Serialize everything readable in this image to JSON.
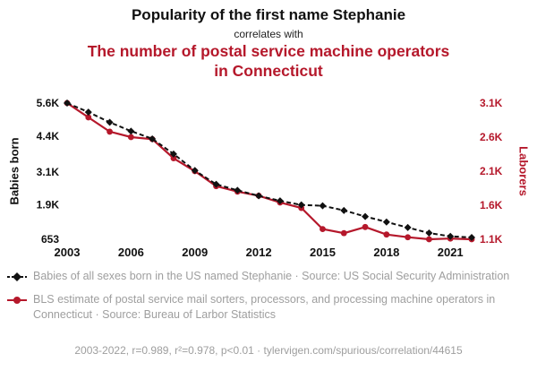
{
  "header": {
    "title": "Popularity of the first name Stephanie",
    "subtitle": "correlates with",
    "title2": "The number of postal service machine operators in Connecticut"
  },
  "colors": {
    "accent_red": "#b5182b",
    "series_black": "#111111",
    "legend_gray": "#9e9e9e"
  },
  "chart_data": {
    "type": "line",
    "x": [
      2003,
      2004,
      2005,
      2006,
      2007,
      2008,
      2009,
      2010,
      2011,
      2012,
      2013,
      2014,
      2015,
      2016,
      2017,
      2018,
      2019,
      2020,
      2021,
      2022
    ],
    "x_ticks": [
      2003,
      2006,
      2009,
      2012,
      2015,
      2018,
      2021
    ],
    "left_axis": {
      "label": "Babies born",
      "color": "#111111",
      "range": [
        653,
        5600
      ],
      "ticks": [
        5600,
        4400,
        3100,
        1900,
        653
      ],
      "tick_labels": [
        "5.6K",
        "4.4K",
        "3.1K",
        "1.9K",
        "653"
      ]
    },
    "right_axis": {
      "label": "Laborers",
      "color": "#b5182b",
      "range": [
        1100,
        3100
      ],
      "ticks": [
        3100,
        2600,
        2100,
        1600,
        1100
      ],
      "tick_labels": [
        "3.1K",
        "2.6K",
        "2.1K",
        "1.6K",
        "1.1K"
      ]
    },
    "series": [
      {
        "name": "Babies of all sexes born in the US named Stephanie",
        "axis": "left",
        "color": "#111111",
        "style": "dashed-diamond",
        "values": [
          5600,
          5270,
          4900,
          4580,
          4300,
          3750,
          3150,
          2650,
          2430,
          2230,
          2050,
          1900,
          1870,
          1700,
          1480,
          1280,
          1080,
          880,
          760,
          720
        ]
      },
      {
        "name": "BLS estimate of postal service mail sorters, processors, and processing machine operators in Connecticut",
        "axis": "right",
        "color": "#b5182b",
        "style": "solid-circle",
        "values": [
          3100,
          2890,
          2680,
          2600,
          2570,
          2290,
          2100,
          1880,
          1800,
          1740,
          1640,
          1560,
          1250,
          1190,
          1280,
          1170,
          1130,
          1100,
          1110,
          1100
        ]
      }
    ],
    "grid": false,
    "legend_position": "bottom"
  },
  "legend": [
    {
      "label": "Babies of all sexes born in the US named Stephanie · Source: US Social Security Administration"
    },
    {
      "label": "BLS estimate of postal service mail sorters, processors, and processing machine operators in Connecticut · Source: Bureau of Larbor Statistics"
    }
  ],
  "footer": {
    "text": "2003-2022, r=0.989, r²=0.978, p<0.01 · tylervigen.com/spurious/correlation/44615"
  }
}
